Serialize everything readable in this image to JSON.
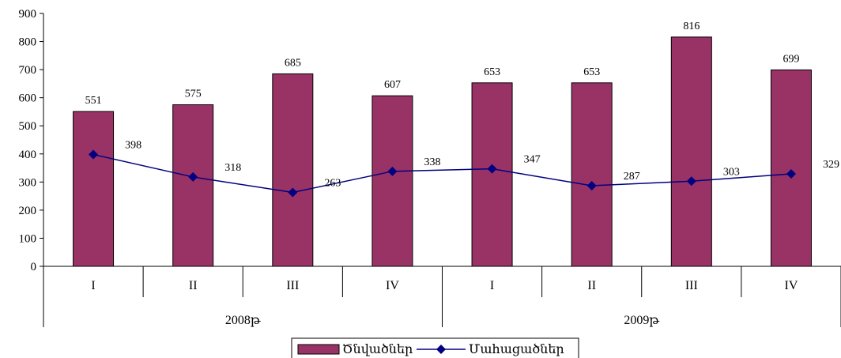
{
  "chart_data": {
    "type": "bar",
    "title": "",
    "xlabel": "",
    "ylabel": "",
    "ylim": [
      0,
      900
    ],
    "yticks": [
      0,
      100,
      200,
      300,
      400,
      500,
      600,
      700,
      800,
      900
    ],
    "categories": [
      "I",
      "II",
      "III",
      "IV",
      "I",
      "II",
      "III",
      "IV"
    ],
    "groups": [
      {
        "label": "2008թ",
        "span": [
          0,
          3
        ]
      },
      {
        "label": "2009թ",
        "span": [
          4,
          7
        ]
      }
    ],
    "series": [
      {
        "name": "Ծնվածներ",
        "type": "bar",
        "color": "#993366",
        "values": [
          551,
          575,
          685,
          607,
          653,
          653,
          816,
          699
        ]
      },
      {
        "name": "Մահացածներ",
        "type": "line",
        "color": "#000080",
        "marker": "diamond",
        "values": [
          398,
          318,
          263,
          338,
          347,
          287,
          303,
          329
        ]
      }
    ],
    "legend_position": "bottom",
    "grid": false
  }
}
